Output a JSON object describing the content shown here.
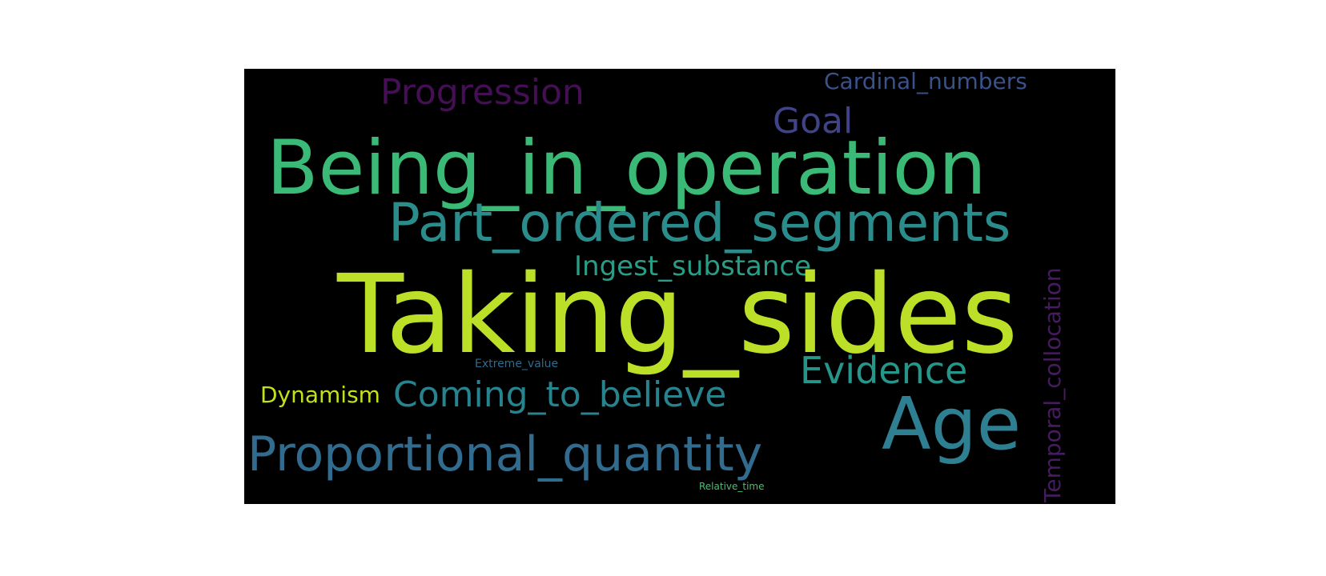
{
  "wordcloud": {
    "background": "#000000",
    "words": [
      {
        "text": "Progression",
        "color": "#440f54"
      },
      {
        "text": "Cardinal_numbers",
        "color": "#3b518a"
      },
      {
        "text": "Goal",
        "color": "#404387"
      },
      {
        "text": "Being_in_operation",
        "color": "#3aba76"
      },
      {
        "text": "Part_ordered_segments",
        "color": "#2b8c8c"
      },
      {
        "text": "Ingest_substance",
        "color": "#2a9d87"
      },
      {
        "text": "Taking_sides",
        "color": "#bcdf27"
      },
      {
        "text": "Temporal_collocation",
        "color": "#461b5f"
      },
      {
        "text": "Evidence",
        "color": "#26968a"
      },
      {
        "text": "Extreme_value",
        "color": "#2e6c8e"
      },
      {
        "text": "Dynamism",
        "color": "#c4e01b"
      },
      {
        "text": "Coming_to_believe",
        "color": "#27838d"
      },
      {
        "text": "Age",
        "color": "#2f7f92"
      },
      {
        "text": "Proportional_quantity",
        "color": "#316b8e"
      },
      {
        "text": "Relative_time",
        "color": "#47c16e"
      }
    ]
  }
}
